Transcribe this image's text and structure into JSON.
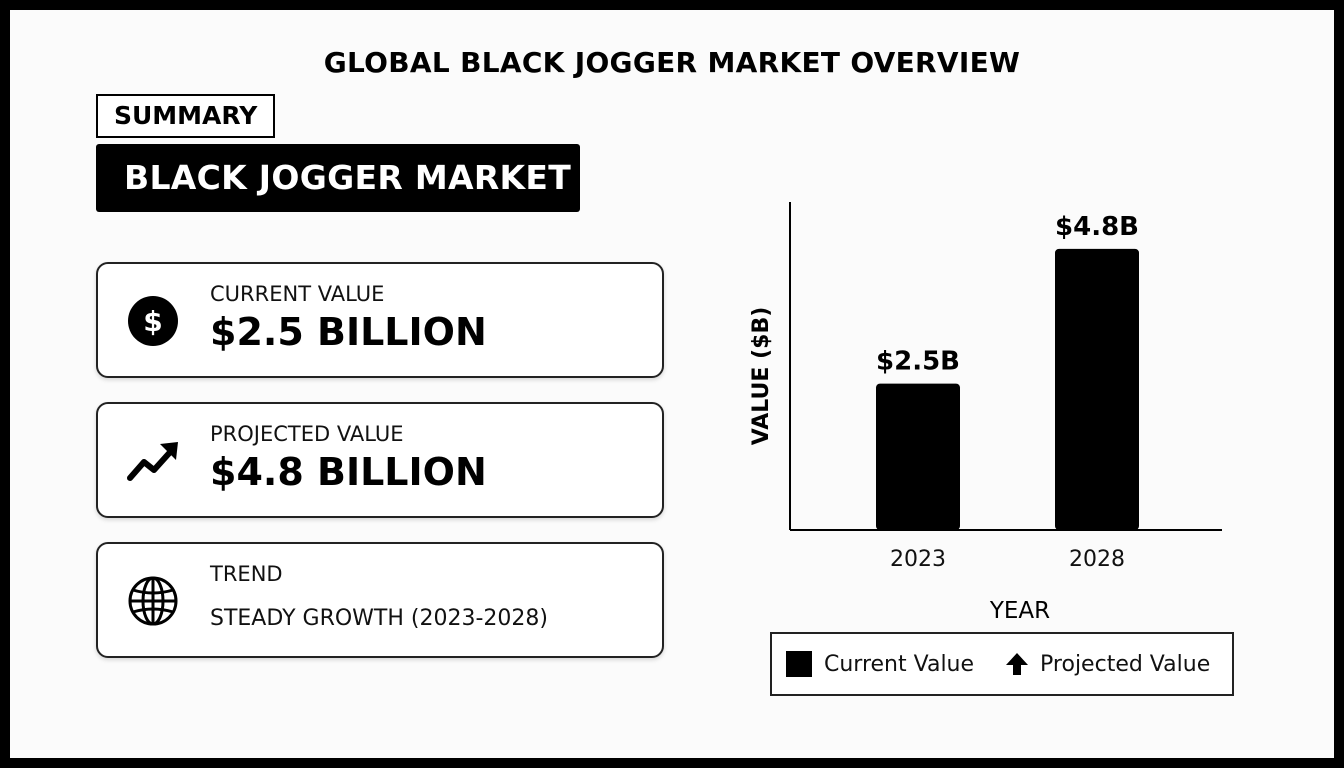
{
  "page": {
    "title": "GLOBAL BLACK JOGGER MARKET OVERVIEW",
    "summary_tag": "SUMMARY",
    "market_title": "BLACK JOGGER MARKET"
  },
  "cards": [
    {
      "label": "CURRENT VALUE",
      "value": "$2.5 BILLION",
      "icon": "dollar-icon"
    },
    {
      "label": "PROJECTED VALUE",
      "value": "$4.8 BILLION",
      "icon": "trend-up-icon"
    },
    {
      "label": "TREND",
      "value": "STEADY GROWTH (2023-2028)",
      "icon": "globe-icon"
    }
  ],
  "chart_data": {
    "type": "bar",
    "categories": [
      "2023",
      "2028"
    ],
    "values": [
      2.5,
      4.8
    ],
    "data_labels": [
      "$2.5B",
      "$4.8B"
    ],
    "xlabel": "YEAR",
    "ylabel": "VALUE ($B)",
    "ylim": [
      0,
      5.6
    ],
    "grid": false,
    "bar_color": "#000000",
    "legend": {
      "placement": "bottom",
      "entries": [
        {
          "label": "Current Value",
          "icon": "square-swatch"
        },
        {
          "label": "Projected Value",
          "icon": "up-arrow-icon"
        }
      ]
    }
  }
}
